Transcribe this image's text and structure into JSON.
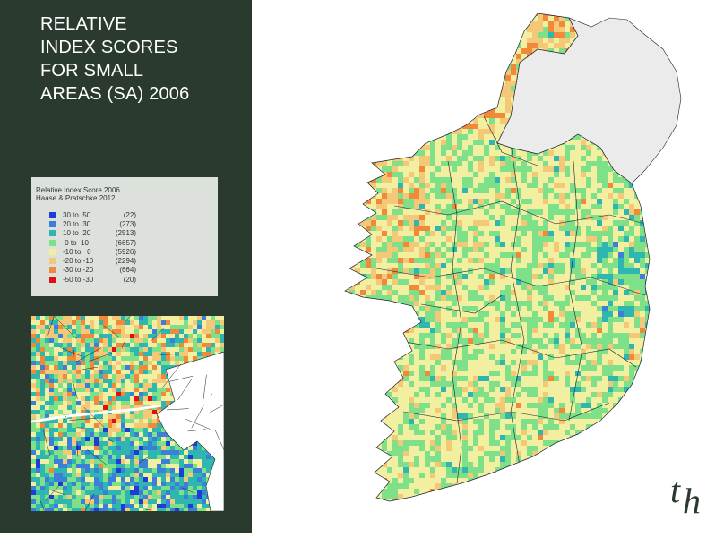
{
  "title_lines": [
    "RELATIVE",
    "INDEX SCORES",
    "FOR SMALL",
    "AREAS (SA) 2006"
  ],
  "legend": {
    "title_lines": [
      "Relative Index Score 2006",
      "Haase & Pratschke 2012"
    ],
    "items": [
      {
        "range": "30 to  50",
        "count": "(22)",
        "color": "#1f3dd6"
      },
      {
        "range": "20 to  30",
        "count": "(273)",
        "color": "#3d7fd8"
      },
      {
        "range": "10 to  20",
        "count": "(2513)",
        "color": "#2fb6b0"
      },
      {
        "range": " 0 to  10",
        "count": "(6657)",
        "color": "#7fe08a"
      },
      {
        "range": "-10 to   0",
        "count": "(5926)",
        "color": "#f2f0a0"
      },
      {
        "range": "-20 to -10",
        "count": "(2294)",
        "color": "#f5c878"
      },
      {
        "range": "-30 to -20",
        "count": "(664)",
        "color": "#f08a3a"
      },
      {
        "range": "-50 to -30",
        "count": "(20)",
        "color": "#e01010"
      }
    ]
  },
  "logo_text": [
    "t",
    "h"
  ],
  "colors": {
    "sidebar": "#2b3a2f",
    "legend_bg": "#dde1dc",
    "northern_ireland": "#ebebeb",
    "county_border": "#1a2030"
  }
}
